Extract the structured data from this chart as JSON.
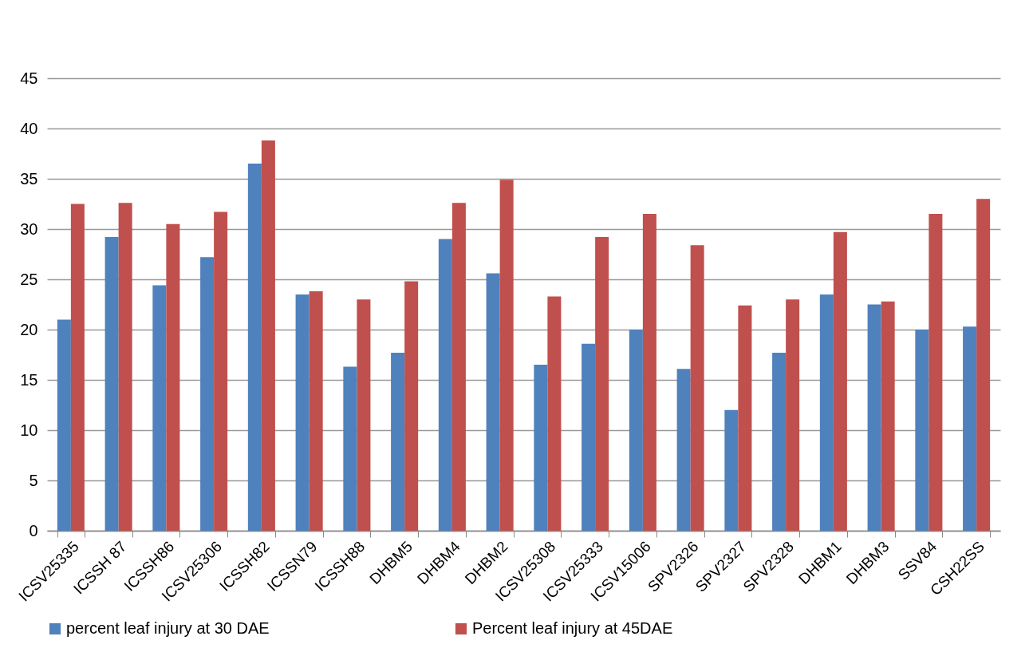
{
  "chart_data": {
    "type": "bar",
    "categories": [
      "ICSV25335",
      "ICSSH 87",
      "ICSSH86",
      "ICSV25306",
      "ICSSH82",
      "ICSSN79",
      "ICSSH88",
      "DHBM5",
      "DHBM4",
      "DHBM2",
      "ICSV25308",
      "ICSV25333",
      "ICSV15006",
      "SPV2326",
      "SPV2327",
      "SPV2328",
      "DHBM1",
      "DHBM3",
      "SSV84",
      "CSH22SS"
    ],
    "series": [
      {
        "name": "percent leaf injury at 30 DAE",
        "color": "#4f81bd",
        "values": [
          21.0,
          29.2,
          24.4,
          27.2,
          36.5,
          23.5,
          16.3,
          17.7,
          29.0,
          25.6,
          16.5,
          18.6,
          20.0,
          16.1,
          12.0,
          17.7,
          23.5,
          22.5,
          20.0,
          20.3
        ]
      },
      {
        "name": "Percent leaf injury at 45DAE",
        "color": "#c0504d",
        "values": [
          32.5,
          32.6,
          30.5,
          31.7,
          38.8,
          23.8,
          23.0,
          24.8,
          32.6,
          34.9,
          23.3,
          29.2,
          31.5,
          28.4,
          22.4,
          23.0,
          29.7,
          22.8,
          31.5,
          33.0
        ]
      }
    ],
    "ylim": [
      0,
      45
    ],
    "yticks": [
      0,
      5,
      10,
      15,
      20,
      25,
      30,
      35,
      40,
      45
    ],
    "grid": "y",
    "legend": "bottom"
  }
}
